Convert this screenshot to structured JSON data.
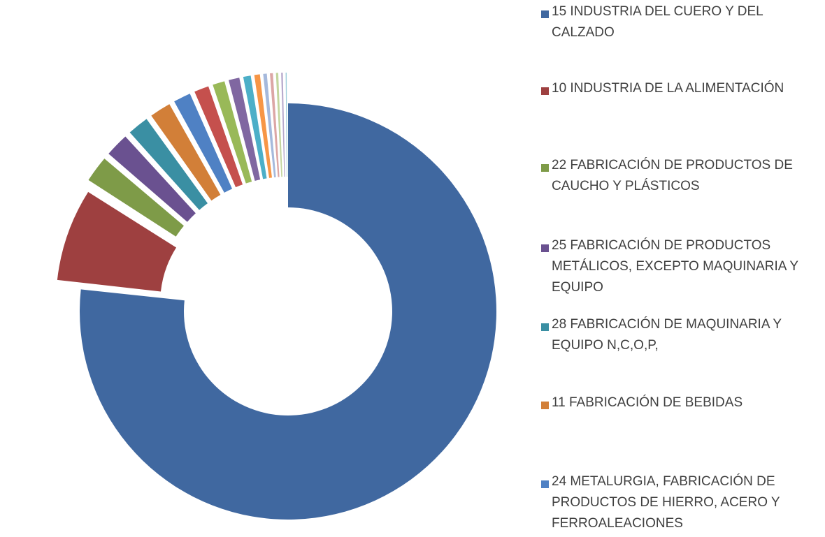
{
  "chart_data": {
    "type": "pie",
    "title": "",
    "legend_position": "right",
    "series": [
      {
        "name": "15 INDUSTRIA DEL CUERO Y DEL CALZADO",
        "color": "#4068A0",
        "value": 76.0
      },
      {
        "name": "10 INDUSTRIA DE LA ALIMENTACIÓN",
        "color": "#9E4040",
        "value": 7.3
      },
      {
        "name": "22 FABRICACIÓN DE PRODUCTOS DE CAUCHO Y PLÁSTICOS",
        "color": "#7E9B48",
        "value": 2.2
      },
      {
        "name": "25 FABRICACIÓN DE PRODUCTOS METÁLICOS, EXCEPTO MAQUINARIA Y EQUIPO",
        "color": "#6A5190",
        "value": 2.0
      },
      {
        "name": "28 FABRICACIÓN DE MAQUINARIA Y EQUIPO N,C,O,P,",
        "color": "#3A8FA3",
        "value": 1.8
      },
      {
        "name": "11 FABRICACIÓN DE BEBIDAS",
        "color": "#D27F38",
        "value": 1.8
      },
      {
        "name": "24 METALURGIA, FABRICACIÓN DE PRODUCTOS DE HIERRO, ACERO Y FERROALEACIONES",
        "color": "#4F81C4",
        "value": 1.5
      },
      {
        "value": 1.3,
        "color": "#C5504D"
      },
      {
        "value": 1.1,
        "color": "#99B958"
      },
      {
        "value": 1.0,
        "color": "#8067A1"
      },
      {
        "value": 0.75,
        "color": "#4CAFC8"
      },
      {
        "value": 0.6,
        "color": "#F79646"
      },
      {
        "value": 0.45,
        "color": "#A5B9DC"
      },
      {
        "value": 0.4,
        "color": "#DCA6A5"
      },
      {
        "value": 0.35,
        "color": "#C4D59E"
      },
      {
        "value": 0.3,
        "color": "#B7A9CC"
      },
      {
        "value": 0.25,
        "color": "#9BCCDA"
      }
    ]
  }
}
